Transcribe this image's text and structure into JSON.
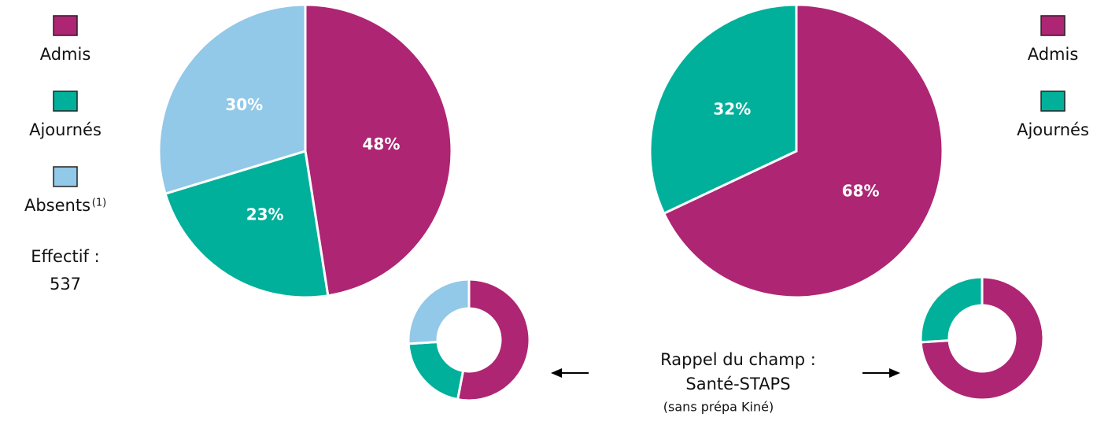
{
  "chart_data": [
    {
      "type": "pie",
      "categories": [
        "Admis",
        "Ajournés",
        "Absents"
      ],
      "values": [
        48,
        23,
        30
      ],
      "value_labels": [
        "48%",
        "23%",
        "30%"
      ],
      "colors": [
        "#ae2573",
        "#00b09a",
        "#92c8e8"
      ],
      "legend": "left",
      "note": "(1)",
      "count_label": "Effectif :",
      "count": 537
    },
    {
      "type": "pie",
      "categories": [
        "Admis",
        "Ajournés"
      ],
      "values": [
        68,
        32
      ],
      "value_labels": [
        "68%",
        "32%"
      ],
      "colors": [
        "#ae2573",
        "#00b09a"
      ],
      "legend": "right"
    },
    {
      "type": "donut",
      "values": [
        53,
        21,
        26
      ],
      "colors": [
        "#ae2573",
        "#00b09a",
        "#92c8e8"
      ]
    },
    {
      "type": "donut",
      "values": [
        74,
        26
      ],
      "colors": [
        "#ae2573",
        "#00b09a"
      ]
    }
  ],
  "caption": {
    "line1": "Rappel du champ :",
    "line2": "Santé-STAPS",
    "line3": "(sans prépa Kiné)"
  }
}
